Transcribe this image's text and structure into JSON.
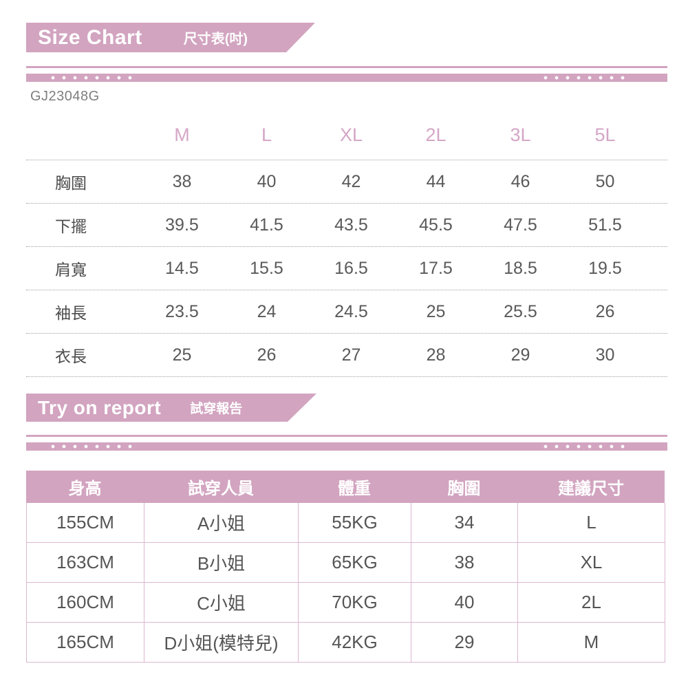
{
  "colors": {
    "accent_pink": "#d2a4c0",
    "size_header_pink": "#d5a6c6",
    "value_text_gray": "#555555",
    "row_label_gray": "#4c4c4c",
    "dotted_rule_gray": "#9f9f9f",
    "table_border_pink": "#dcb7d0",
    "banner_text_white": "#ffffff"
  },
  "size_chart": {
    "banner": {
      "title_en": "Size Chart",
      "title_zh": "尺寸表(吋)"
    },
    "product_code": "GJ23048G",
    "table": {
      "columns": [
        "M",
        "L",
        "XL",
        "2L",
        "3L",
        "5L"
      ],
      "rows": [
        {
          "label": "胸圍",
          "values": [
            "38",
            "40",
            "42",
            "44",
            "46",
            "50"
          ]
        },
        {
          "label": "下擺",
          "values": [
            "39.5",
            "41.5",
            "43.5",
            "45.5",
            "47.5",
            "51.5"
          ]
        },
        {
          "label": "肩寬",
          "values": [
            "14.5",
            "15.5",
            "16.5",
            "17.5",
            "18.5",
            "19.5"
          ]
        },
        {
          "label": "袖長",
          "values": [
            "23.5",
            "24",
            "24.5",
            "25",
            "25.5",
            "26"
          ]
        },
        {
          "label": "衣長",
          "values": [
            "25",
            "26",
            "27",
            "28",
            "29",
            "30"
          ]
        }
      ]
    }
  },
  "tryon": {
    "banner": {
      "title_en": "Try on report",
      "title_zh": "試穿報告"
    },
    "table": {
      "headers": [
        "身高",
        "試穿人員",
        "體重",
        "胸圍",
        "建議尺寸"
      ],
      "rows": [
        [
          "155CM",
          "A小姐",
          "55KG",
          "34",
          "L"
        ],
        [
          "163CM",
          "B小姐",
          "65KG",
          "38",
          "XL"
        ],
        [
          "160CM",
          "C小姐",
          "70KG",
          "40",
          "2L"
        ],
        [
          "165CM",
          "D小姐(模特兒)",
          "42KG",
          "29",
          "M"
        ]
      ]
    }
  }
}
